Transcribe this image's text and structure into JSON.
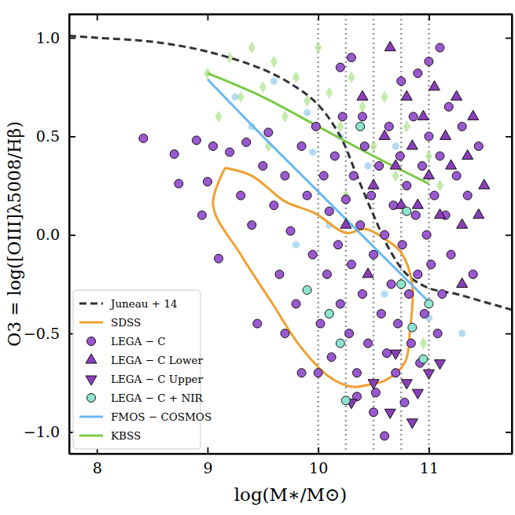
{
  "chart_data": {
    "type": "scatter",
    "x_label": "log(M∗/M⊙)",
    "y_label": "O3 = log([OIII]λ5008/Hβ)",
    "xlim": [
      7.75,
      11.75
    ],
    "ylim": [
      -1.11,
      1.12
    ],
    "xticks": [
      8,
      9,
      10,
      11
    ],
    "yticks": [
      {
        "value": -1.0,
        "label": "−1.0"
      },
      {
        "value": -0.5,
        "label": "−0.5"
      },
      {
        "value": 0.0,
        "label": "0.0"
      },
      {
        "value": 0.5,
        "label": "0.5"
      },
      {
        "value": 1.0,
        "label": "1.0"
      }
    ],
    "vlines": [
      10,
      10.25,
      10.5,
      10.75,
      11
    ],
    "legend": "lower left",
    "series": [
      {
        "name": "Juneau + 14",
        "type": "line",
        "line_style": "dashed",
        "color": "#333333",
        "x": [
          7.75,
          8,
          8.5,
          9,
          9.5,
          9.8,
          10,
          10.2,
          10.35,
          10.5,
          10.65,
          10.8,
          11,
          11.25,
          11.5,
          11.75
        ],
        "values": [
          1.01,
          1.0,
          0.98,
          0.93,
          0.84,
          0.75,
          0.66,
          0.5,
          0.3,
          0.1,
          -0.08,
          -0.2,
          -0.27,
          -0.3,
          -0.34,
          -0.38
        ]
      },
      {
        "name": "SDSS",
        "type": "line",
        "line_style": "solid",
        "color": "#f0a030",
        "x": [
          9.16,
          9.4,
          9.7,
          9.97,
          10.25,
          10.43,
          10.6,
          10.75,
          10.85,
          10.83,
          10.78,
          10.6,
          10.46,
          10.3,
          10.1,
          9.83,
          9.6,
          9.3,
          9.05,
          9.16
        ],
        "values": [
          0.34,
          0.3,
          0.17,
          0.11,
          0.01,
          0.03,
          -0.02,
          -0.09,
          -0.25,
          -0.48,
          -0.65,
          -0.74,
          -0.76,
          -0.77,
          -0.72,
          -0.56,
          -0.36,
          -0.1,
          0.15,
          0.34
        ]
      },
      {
        "name": "LEGA − C",
        "type": "scatter",
        "marker": "circle",
        "color": "#9b59d0",
        "x": [
          8.42,
          8.7,
          8.74,
          8.9,
          8.95,
          9.0,
          9.05,
          9.1,
          9.2,
          9.3,
          9.35,
          9.4,
          9.5,
          9.55,
          9.6,
          9.65,
          9.7,
          9.75,
          9.8,
          9.85,
          9.9,
          9.95,
          9.98,
          10.02,
          10.05,
          10.08,
          10.1,
          10.12,
          10.15,
          10.18,
          10.2,
          10.22,
          10.25,
          10.28,
          10.3,
          10.32,
          10.35,
          10.38,
          10.4,
          10.42,
          10.45,
          10.48,
          10.5,
          10.52,
          10.55,
          10.57,
          10.6,
          10.62,
          10.64,
          10.66,
          10.68,
          10.7,
          10.72,
          10.74,
          10.76,
          10.78,
          10.8,
          10.82,
          10.84,
          10.86,
          10.88,
          10.9,
          10.92,
          10.94,
          10.96,
          10.98,
          11.0,
          11.02,
          11.05,
          11.08,
          11.1,
          11.12,
          11.15,
          11.18,
          11.2,
          11.25,
          11.3,
          11.35,
          11.4,
          11.45,
          10.35,
          10.6,
          10.5,
          10.2,
          10.3,
          10.75,
          10.9,
          11.0,
          11.1,
          10.4,
          9.45,
          9.7,
          10.0,
          9.85
        ],
        "values": [
          0.49,
          0.41,
          0.26,
          0.48,
          0.1,
          0.27,
          0.45,
          -0.12,
          0.42,
          0.2,
          0.47,
          0.05,
          0.35,
          0.52,
          0.15,
          -0.2,
          0.3,
          0.02,
          -0.35,
          0.45,
          0.2,
          -0.1,
          0.55,
          -0.45,
          0.3,
          -0.2,
          0.12,
          -0.62,
          0.4,
          -0.05,
          -0.35,
          0.6,
          0.18,
          -0.5,
          -0.15,
          0.3,
          -0.7,
          0.05,
          -0.3,
          0.45,
          -0.55,
          0.2,
          -0.1,
          -0.8,
          0.35,
          -0.4,
          0.0,
          -0.6,
          0.55,
          -0.25,
          0.15,
          -0.7,
          -0.45,
          0.4,
          -0.05,
          -0.85,
          0.25,
          -0.3,
          -0.55,
          0.6,
          0.1,
          -0.2,
          -0.65,
          0.35,
          -0.4,
          0.0,
          0.5,
          -0.15,
          0.2,
          -0.5,
          0.4,
          -0.3,
          0.1,
          0.65,
          -0.1,
          0.3,
          0.55,
          0.2,
          -0.2,
          0.45,
          -0.82,
          -1.02,
          -0.9,
          0.85,
          0.9,
          0.78,
          0.82,
          0.88,
          0.95,
          0.6,
          -0.45,
          -0.5,
          -0.7,
          -0.7
        ]
      },
      {
        "name": "LEGA − C Lower",
        "type": "scatter",
        "marker": "triangle-up",
        "color": "#8a3fb8",
        "x": [
          10.25,
          10.5,
          10.6,
          10.7,
          10.8,
          10.85,
          10.9,
          10.95,
          11.0,
          11.05,
          11.1,
          11.15,
          11.2,
          11.25,
          11.3,
          11.35,
          11.4,
          11.5,
          10.4,
          10.65,
          10.45,
          11.3,
          10.75,
          11.45
        ],
        "values": [
          0.05,
          0.25,
          0.5,
          0.35,
          0.7,
          0.45,
          0.15,
          0.6,
          0.3,
          0.75,
          0.1,
          0.5,
          0.35,
          0.7,
          0.05,
          0.4,
          0.6,
          0.25,
          0.7,
          0.95,
          -0.2,
          -0.25,
          0.15,
          0.1
        ]
      },
      {
        "name": "LEGA − C Upper",
        "type": "scatter",
        "marker": "triangle-down",
        "color": "#8a3fb8",
        "x": [
          10.3,
          10.5,
          10.65,
          10.7,
          10.85,
          10.9,
          11.0,
          11.1,
          10.8
        ],
        "values": [
          -0.85,
          -0.75,
          -0.9,
          -0.6,
          -0.95,
          -0.8,
          -0.7,
          -0.65,
          -0.75
        ]
      },
      {
        "name": "LEGA − C  +  NIR",
        "type": "scatter",
        "marker": "circle",
        "color": "#8fe3cf",
        "x": [
          9.9,
          10.1,
          10.25,
          10.38,
          10.75,
          10.8,
          10.85,
          10.95,
          11.0,
          10.2
        ],
        "values": [
          -0.28,
          -0.4,
          -0.84,
          0.55,
          -0.25,
          0.12,
          -0.47,
          -0.63,
          -0.35,
          -0.55
        ]
      },
      {
        "name": "FMOS − COSMOS",
        "type": "line",
        "line_style": "solid",
        "color": "#6cb8f0",
        "x": [
          9.0,
          9.5,
          10.0,
          10.5,
          11.0
        ],
        "values": [
          0.79,
          0.5,
          0.22,
          -0.06,
          -0.34
        ]
      },
      {
        "name": "KBSS",
        "type": "line",
        "line_style": "solid",
        "color": "#7ac943",
        "x": [
          9.0,
          9.5,
          10.0,
          10.5,
          11.0
        ],
        "values": [
          0.82,
          0.7,
          0.55,
          0.4,
          0.26
        ]
      },
      {
        "type": "scatter",
        "marker": "hexagon",
        "color": "#8cc8f0",
        "x": [
          9.6,
          9.9,
          10.2,
          10.45,
          10.9,
          11.0,
          11.3,
          9.4,
          9.8,
          10.1,
          10.6,
          9.25,
          10.7,
          10.05,
          9.95
        ],
        "values": [
          0.78,
          0.62,
          0.5,
          0.35,
          0.1,
          -0.42,
          -0.5,
          0.55,
          -0.05,
          0.05,
          -0.3,
          0.7,
          0.45,
          0.3,
          0.42
        ]
      },
      {
        "type": "scatter",
        "marker": "diamond",
        "color": "#a5de80",
        "x": [
          9.0,
          9.2,
          9.3,
          9.4,
          9.5,
          9.6,
          9.7,
          9.8,
          9.9,
          10.0,
          10.1,
          10.2,
          10.3,
          10.4,
          10.5,
          10.6,
          10.7,
          10.8,
          11.0,
          11.1,
          9.1,
          10.95,
          9.55,
          10.25
        ],
        "values": [
          0.82,
          0.9,
          0.7,
          0.95,
          0.75,
          0.88,
          0.6,
          0.8,
          0.68,
          0.95,
          0.72,
          0.55,
          0.8,
          0.65,
          0.45,
          0.7,
          0.3,
          0.55,
          0.4,
          0.25,
          0.6,
          -0.55,
          0.45,
          0.2
        ]
      }
    ]
  }
}
